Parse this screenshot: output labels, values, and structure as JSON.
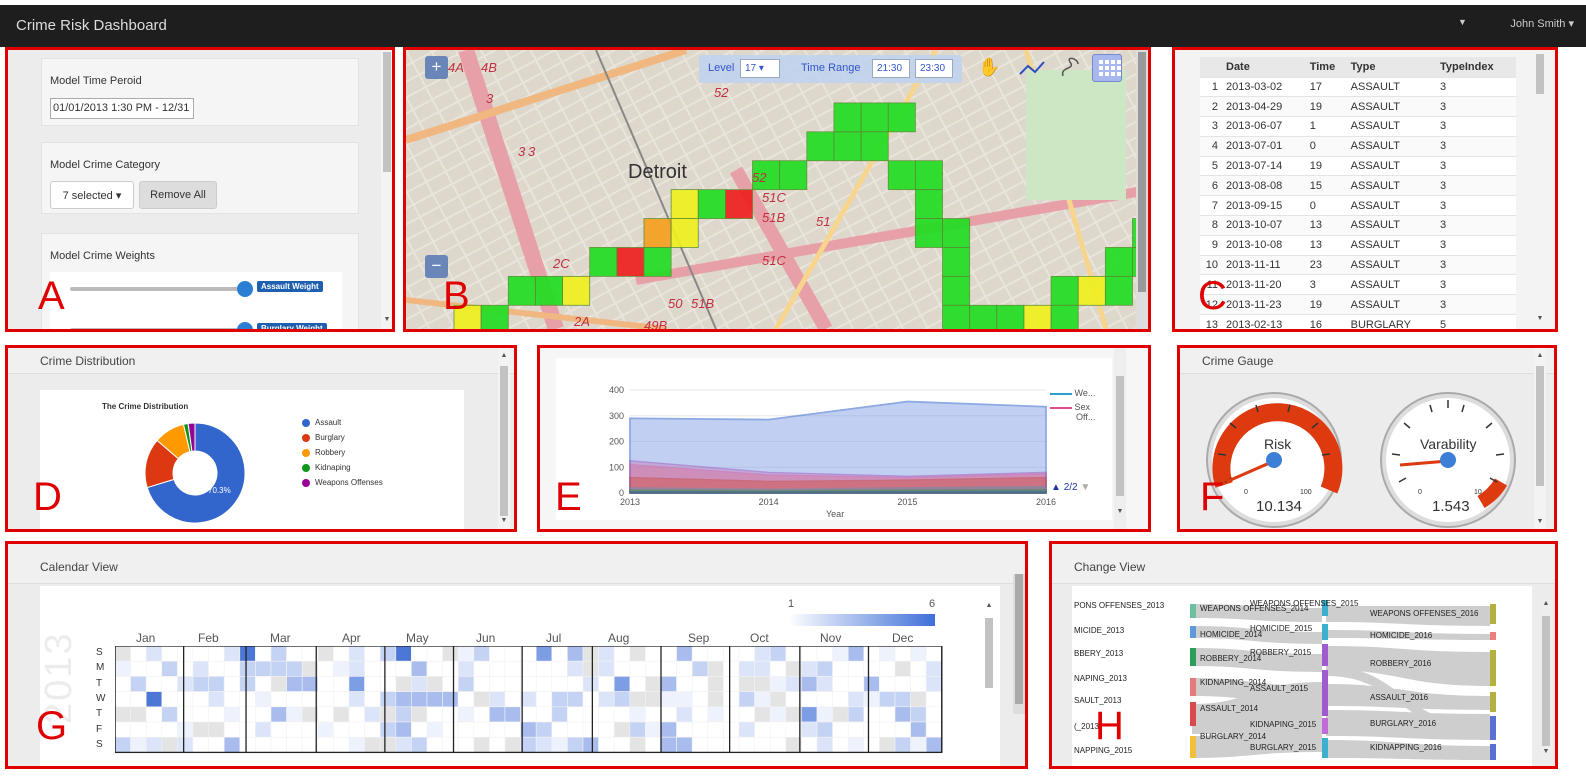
{
  "app": {
    "title": "Crime Risk Dashboard",
    "user": "John Smith"
  },
  "letters": {
    "A": "A",
    "B": "B",
    "C": "C",
    "D": "D",
    "E": "E",
    "F": "F",
    "G": "G",
    "H": "H"
  },
  "panelA": {
    "time_label": "Model Time Peroid",
    "time_value": "01/01/2013 1:30 PM - 12/31",
    "category_label": "Model Crime Category",
    "category_select": "7 selected",
    "remove_all": "Remove All",
    "weights_label": "Model Crime Weights",
    "assault_weight": "Assault Weight",
    "burglary_weight": "Burglary Weight"
  },
  "panelB": {
    "level_label": "Level",
    "level_value": "17",
    "range_label": "Time Range",
    "range_start": "21:30",
    "range_end": "23:30",
    "map_labels": [
      "4A",
      "4B",
      "3",
      "3",
      "3",
      "52",
      "52",
      "51C",
      "51B",
      "51",
      "51C",
      "51B",
      "2C",
      "50",
      "2A",
      "49B",
      "Detroit"
    ],
    "grid_cells": [
      [
        0,
        8,
        "y"
      ],
      [
        1,
        8,
        "g"
      ],
      [
        2,
        7,
        "g"
      ],
      [
        3,
        7,
        "g"
      ],
      [
        4,
        7,
        "y"
      ],
      [
        5,
        6,
        "g"
      ],
      [
        6,
        6,
        "r"
      ],
      [
        7,
        5,
        "o"
      ],
      [
        7,
        6,
        "g"
      ],
      [
        8,
        5,
        "y"
      ],
      [
        8,
        4,
        "y"
      ],
      [
        9,
        4,
        "g"
      ],
      [
        10,
        4,
        "r"
      ],
      [
        11,
        3,
        "g"
      ],
      [
        12,
        3,
        "g"
      ],
      [
        13,
        2,
        "g"
      ],
      [
        14,
        2,
        "g"
      ],
      [
        14,
        1,
        "g"
      ],
      [
        15,
        1,
        "g"
      ],
      [
        15,
        2,
        "g"
      ],
      [
        16,
        1,
        "g"
      ],
      [
        16,
        3,
        "g"
      ],
      [
        17,
        3,
        "g"
      ],
      [
        17,
        4,
        "g"
      ],
      [
        17,
        5,
        "g"
      ],
      [
        18,
        5,
        "g"
      ],
      [
        18,
        6,
        "g"
      ],
      [
        18,
        7,
        "g"
      ],
      [
        18,
        8,
        "g"
      ],
      [
        19,
        8,
        "g"
      ],
      [
        19,
        9,
        "g"
      ],
      [
        20,
        8,
        "g"
      ],
      [
        20,
        9,
        "o"
      ],
      [
        21,
        8,
        "y"
      ],
      [
        22,
        7,
        "g"
      ],
      [
        22,
        8,
        "g"
      ],
      [
        23,
        7,
        "y"
      ],
      [
        24,
        6,
        "g"
      ],
      [
        24,
        7,
        "g"
      ],
      [
        25,
        5,
        "g"
      ],
      [
        25,
        6,
        "g"
      ],
      [
        26,
        5,
        "g"
      ]
    ]
  },
  "panelC": {
    "headers": [
      "",
      "Date",
      "Time",
      "Type",
      "TypeIndex"
    ],
    "rows": [
      [
        "1",
        "2013-03-02",
        "17",
        "ASSAULT",
        "3"
      ],
      [
        "2",
        "2013-04-29",
        "19",
        "ASSAULT",
        "3"
      ],
      [
        "3",
        "2013-06-07",
        "1",
        "ASSAULT",
        "3"
      ],
      [
        "4",
        "2013-07-01",
        "0",
        "ASSAULT",
        "3"
      ],
      [
        "5",
        "2013-07-14",
        "19",
        "ASSAULT",
        "3"
      ],
      [
        "6",
        "2013-08-08",
        "15",
        "ASSAULT",
        "3"
      ],
      [
        "7",
        "2013-09-15",
        "0",
        "ASSAULT",
        "3"
      ],
      [
        "8",
        "2013-10-07",
        "13",
        "ASSAULT",
        "3"
      ],
      [
        "9",
        "2013-10-08",
        "13",
        "ASSAULT",
        "3"
      ],
      [
        "10",
        "2013-11-11",
        "23",
        "ASSAULT",
        "3"
      ],
      [
        "11",
        "2013-11-20",
        "3",
        "ASSAULT",
        "3"
      ],
      [
        "12",
        "2013-11-23",
        "19",
        "ASSAULT",
        "3"
      ],
      [
        "13",
        "2013-02-13",
        "16",
        "BURGLARY",
        "5"
      ]
    ]
  },
  "panelD": {
    "title": "Crime Distribution",
    "chart_title": "The Crime Distribution",
    "slice_label": "70.3%",
    "legend": [
      {
        "name": "Assault",
        "color": "#3366cc"
      },
      {
        "name": "Burglary",
        "color": "#dc3912"
      },
      {
        "name": "Robbery",
        "color": "#ff9900"
      },
      {
        "name": "Kidnaping",
        "color": "#109618"
      },
      {
        "name": "Weapons Offenses",
        "color": "#990099"
      }
    ]
  },
  "panelE": {
    "xlabel": "Year",
    "legend": [
      "We...",
      "Sex",
      "Off..."
    ],
    "pager": "2/2"
  },
  "panelF": {
    "title": "Crime Gauge",
    "risk_label": "Risk",
    "risk_value": "10.134",
    "risk_min": "0",
    "risk_max": "100",
    "var_label": "Varability",
    "var_value": "1.543",
    "var_min": "0",
    "var_max": "10"
  },
  "panelG": {
    "title": "Calendar View",
    "year": "2013",
    "scale_min": "1",
    "scale_max": "6",
    "months": [
      "Jan",
      "Feb",
      "Mar",
      "Apr",
      "May",
      "Jun",
      "Jul",
      "Aug",
      "Sep",
      "Oct",
      "Nov",
      "Dec"
    ],
    "days": [
      "S",
      "M",
      "T",
      "W",
      "T",
      "F",
      "S"
    ]
  },
  "panelH": {
    "title": "Change View",
    "col1": [
      "PONS OFFENSES_2013",
      "MICIDE_2013",
      "BBERY_2013",
      "NAPING_2013",
      "SAULT_2013",
      "(_2013",
      "NAPPING_2015"
    ],
    "col2": [
      "WEAPONS OFFENSES_2014",
      "HOMICIDE_2014",
      "ROBBERY_2014",
      "KIDNAPING_2014",
      "ASSAULT_2014",
      "BURGLARY_2014"
    ],
    "col3": [
      "WEAPONS OFFENSES_2015",
      "HOMICIDE_2015",
      "ROBBERY_2015",
      "ASSAULT_2015",
      "KIDNAPING_2015",
      "BURGLARY_2015"
    ],
    "col4": [
      "WEAPONS OFFENSES_2016",
      "HOMICIDE_2016",
      "ROBBERY_2016",
      "ASSAULT_2016",
      "BURGLARY_2016",
      "KIDNAPPING_2016"
    ]
  },
  "chart_data": [
    {
      "type": "pie",
      "title": "The Crime Distribution",
      "categories": [
        "Assault",
        "Burglary",
        "Robbery",
        "Kidnaping",
        "Weapons Offenses"
      ],
      "values": [
        70.3,
        16,
        10,
        1.5,
        2.2
      ]
    },
    {
      "type": "area",
      "title": "",
      "xlabel": "Year",
      "ylabel": "",
      "x": [
        2013,
        2014,
        2015,
        2016
      ],
      "ylim": [
        0,
        400
      ],
      "series": [
        {
          "values": [
            290,
            285,
            355,
            335
          ]
        },
        {
          "values": [
            125,
            80,
            65,
            80
          ]
        },
        {
          "values": [
            110,
            70,
            60,
            75
          ]
        },
        {
          "values": [
            60,
            45,
            50,
            60
          ]
        },
        {
          "values": [
            20,
            15,
            20,
            25
          ]
        },
        {
          "values": [
            10,
            8,
            10,
            12
          ]
        },
        {
          "values": [
            5,
            4,
            5,
            6
          ]
        }
      ]
    }
  ]
}
